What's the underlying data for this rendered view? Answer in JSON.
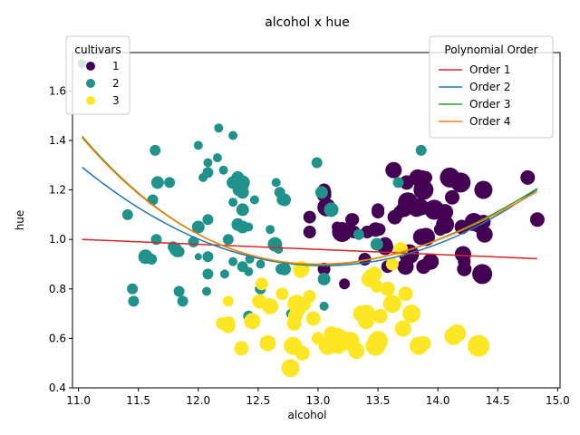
{
  "chart_data": {
    "type": "scatter",
    "title": "alcohol x hue",
    "xlabel": "alcohol",
    "ylabel": "hue",
    "xlim": [
      10.95,
      15.02
    ],
    "ylim": [
      0.4,
      1.755
    ],
    "xticks": [
      "11.0",
      "11.5",
      "12.0",
      "12.5",
      "13.0",
      "13.5",
      "14.0",
      "14.5",
      "15.0"
    ],
    "yticks": [
      "0.4",
      "0.6",
      "0.8",
      "1.0",
      "1.2",
      "1.4",
      "1.6"
    ],
    "grid": false,
    "legend_cultivars": {
      "title": "cultivars",
      "placement": "top-left",
      "entries": [
        {
          "label": "1",
          "color": "#440154"
        },
        {
          "label": "2",
          "color": "#21918c"
        },
        {
          "label": "3",
          "color": "#fde725"
        }
      ]
    },
    "legend_poly": {
      "title": "Polynomial Order",
      "placement": "top-right",
      "entries": [
        {
          "label": "Order 1",
          "color": "#d62728"
        },
        {
          "label": "Order 2",
          "color": "#1f77b4"
        },
        {
          "label": "Order 3",
          "color": "#2ca02c"
        },
        {
          "label": "Order 4",
          "color": "#ff7f0e"
        }
      ]
    },
    "series": [
      {
        "name": "1",
        "color": "#440154",
        "points": [
          [
            13.2,
            1.03,
            22
          ],
          [
            13.16,
            1.05,
            12
          ],
          [
            14.37,
            0.86,
            22
          ],
          [
            13.24,
            1.04,
            14
          ],
          [
            14.2,
            1.05,
            16
          ],
          [
            14.39,
            1.02,
            18
          ],
          [
            14.06,
            1.06,
            20
          ],
          [
            14.83,
            1.08,
            16
          ],
          [
            13.86,
            1.01,
            18
          ],
          [
            14.1,
            1.25,
            22
          ],
          [
            14.12,
            1.17,
            16
          ],
          [
            13.75,
            1.15,
            22
          ],
          [
            14.75,
            1.25,
            16
          ],
          [
            14.38,
            1.2,
            20
          ],
          [
            13.63,
            1.28,
            18
          ],
          [
            14.3,
            1.07,
            20
          ],
          [
            13.83,
            1.13,
            20
          ],
          [
            14.19,
            1.23,
            22
          ],
          [
            13.64,
            1.09,
            16
          ],
          [
            14.06,
            1.11,
            18
          ],
          [
            12.93,
            1.09,
            14
          ],
          [
            13.71,
            1.12,
            16
          ],
          [
            13.5,
            1.12,
            14
          ],
          [
            13.05,
            1.18,
            16
          ],
          [
            13.39,
            0.92,
            14
          ],
          [
            13.3,
            1.03,
            14
          ],
          [
            13.87,
            1.25,
            16
          ],
          [
            14.02,
            1.04,
            14
          ],
          [
            13.73,
            0.89,
            18
          ],
          [
            13.58,
            0.89,
            14
          ],
          [
            13.68,
            1.11,
            14
          ],
          [
            13.76,
            0.94,
            22
          ],
          [
            13.51,
            1.04,
            14
          ],
          [
            13.48,
            1.04,
            16
          ],
          [
            13.28,
            1.08,
            14
          ],
          [
            13.05,
            0.88,
            14
          ],
          [
            13.07,
            1.13,
            20
          ],
          [
            14.22,
            0.88,
            16
          ],
          [
            13.56,
            0.97,
            18
          ],
          [
            13.41,
            1.03,
            14
          ],
          [
            13.88,
            1.2,
            22
          ],
          [
            13.24,
            1.04,
            14
          ],
          [
            13.05,
            1.19,
            16
          ],
          [
            14.21,
            0.94,
            18
          ],
          [
            14.38,
            1.07,
            16
          ],
          [
            13.9,
            1.01,
            20
          ],
          [
            13.94,
            0.91,
            18
          ],
          [
            13.05,
            1.2,
            14
          ],
          [
            13.83,
            1.25,
            18
          ],
          [
            13.82,
            1.12,
            16
          ],
          [
            13.77,
            1.13,
            16
          ],
          [
            13.74,
            1.23,
            16
          ],
          [
            13.56,
            0.98,
            16
          ],
          [
            14.22,
            0.91,
            14
          ],
          [
            13.29,
            1.08,
            14
          ],
          [
            13.72,
            1.12,
            16
          ],
          [
            13.5,
            1.11,
            14
          ],
          [
            13.86,
            1.13,
            18
          ],
          [
            13.22,
            0.82,
            12
          ],
          [
            13.88,
            0.89,
            16
          ],
          [
            14.34,
            1.06,
            18
          ],
          [
            13.97,
            1.12,
            22
          ],
          [
            13.9,
            1.25,
            14
          ],
          [
            12.93,
            1.03,
            14
          ]
        ]
      },
      {
        "name": "2",
        "color": "#21918c",
        "points": [
          [
            12.37,
            1.05,
            14
          ],
          [
            12.33,
            1.25,
            14
          ],
          [
            12.64,
            0.98,
            16
          ],
          [
            13.67,
            1.23,
            12
          ],
          [
            12.37,
            1.22,
            14
          ],
          [
            12.17,
            1.45,
            10
          ],
          [
            12.37,
            1.19,
            14
          ],
          [
            13.11,
            1.12,
            16
          ],
          [
            12.37,
            1.12,
            14
          ],
          [
            13.34,
            1.02,
            12
          ],
          [
            12.21,
            1.28,
            10
          ],
          [
            12.29,
            1.42,
            10
          ],
          [
            13.86,
            1.36,
            12
          ],
          [
            13.49,
            0.98,
            14
          ],
          [
            12.99,
            1.31,
            12
          ],
          [
            11.96,
            0.99,
            12
          ],
          [
            11.66,
            1.23,
            14
          ],
          [
            13.03,
            1.19,
            14
          ],
          [
            11.84,
            0.95,
            12
          ],
          [
            12.33,
            1.06,
            14
          ],
          [
            12.7,
            1.16,
            12
          ],
          [
            12.0,
            1.38,
            10
          ],
          [
            12.72,
            1.16,
            14
          ],
          [
            12.08,
            1.31,
            10
          ],
          [
            13.05,
            0.84,
            14
          ],
          [
            11.84,
            0.79,
            12
          ],
          [
            12.67,
            0.96,
            10
          ],
          [
            12.16,
            1.33,
            10
          ],
          [
            11.65,
            1.0,
            12
          ],
          [
            11.64,
            1.36,
            12
          ],
          [
            12.08,
            1.27,
            12
          ],
          [
            12.08,
            1.08,
            12
          ],
          [
            12.0,
            1.05,
            14
          ],
          [
            12.69,
            0.88,
            12
          ],
          [
            12.29,
            0.91,
            10
          ],
          [
            11.62,
            1.16,
            12
          ],
          [
            12.47,
            1.16,
            10
          ],
          [
            11.81,
            0.96,
            14
          ],
          [
            12.29,
            1.15,
            10
          ],
          [
            12.37,
            1.23,
            16
          ],
          [
            12.29,
            1.23,
            14
          ],
          [
            12.08,
            0.86,
            12
          ],
          [
            12.6,
            1.04,
            10
          ],
          [
            12.34,
            1.2,
            14
          ],
          [
            11.82,
            0.96,
            12
          ],
          [
            12.51,
            0.8,
            10
          ],
          [
            12.42,
            0.69,
            12
          ],
          [
            12.25,
            1.0,
            12
          ],
          [
            12.72,
            0.88,
            14
          ],
          [
            12.22,
            0.86,
            10
          ],
          [
            11.61,
            0.92,
            12
          ],
          [
            11.46,
            0.75,
            12
          ],
          [
            12.52,
            0.8,
            12
          ],
          [
            11.76,
            1.23,
            12
          ],
          [
            11.41,
            1.1,
            12
          ],
          [
            12.08,
            0.93,
            12
          ],
          [
            11.03,
            1.71,
            10
          ],
          [
            11.82,
            0.95,
            12
          ],
          [
            12.42,
            1.05,
            10
          ],
          [
            12.77,
            0.7,
            10
          ],
          [
            12.0,
            0.93,
            8
          ],
          [
            11.45,
            0.8,
            12
          ],
          [
            11.56,
            0.93,
            16
          ],
          [
            12.42,
            0.87,
            10
          ],
          [
            13.05,
            0.73,
            10
          ],
          [
            11.87,
            0.75,
            12
          ],
          [
            12.07,
            0.79,
            10
          ],
          [
            12.43,
            0.92,
            10
          ],
          [
            11.79,
            0.97,
            12
          ],
          [
            12.37,
            0.89,
            12
          ],
          [
            12.04,
            1.25,
            10
          ],
          [
            12.68,
            1.19,
            12
          ],
          [
            12.65,
            1.23,
            10
          ],
          [
            12.52,
            0.9,
            10
          ]
        ]
      },
      {
        "name": "3",
        "color": "#fde725",
        "points": [
          [
            12.86,
            0.88,
            18
          ],
          [
            12.88,
            0.74,
            16
          ],
          [
            12.81,
            0.69,
            16
          ],
          [
            12.7,
            0.78,
            14
          ],
          [
            12.51,
            0.75,
            16
          ],
          [
            12.6,
            0.73,
            18
          ],
          [
            12.25,
            0.75,
            12
          ],
          [
            12.53,
            0.82,
            14
          ],
          [
            13.49,
            0.81,
            14
          ],
          [
            12.84,
            0.72,
            16
          ],
          [
            12.93,
            0.77,
            14
          ],
          [
            13.36,
            0.7,
            18
          ],
          [
            13.52,
            0.69,
            16
          ],
          [
            13.62,
            0.74,
            20
          ],
          [
            12.25,
            0.66,
            16
          ],
          [
            13.16,
            0.61,
            18
          ],
          [
            13.88,
            0.58,
            16
          ],
          [
            12.87,
            0.54,
            16
          ],
          [
            13.32,
            0.55,
            18
          ],
          [
            13.08,
            0.57,
            20
          ],
          [
            13.5,
            0.59,
            22
          ],
          [
            12.79,
            0.57,
            20
          ],
          [
            13.11,
            0.62,
            16
          ],
          [
            13.23,
            0.59,
            20
          ],
          [
            12.58,
            0.58,
            18
          ],
          [
            13.17,
            0.57,
            18
          ],
          [
            13.84,
            0.57,
            20
          ],
          [
            12.45,
            0.67,
            18
          ],
          [
            14.34,
            0.57,
            24
          ],
          [
            13.48,
            0.57,
            22
          ],
          [
            12.36,
            0.56,
            16
          ],
          [
            13.69,
            0.96,
            16
          ],
          [
            12.85,
            0.87,
            14
          ],
          [
            12.96,
            0.68,
            16
          ],
          [
            13.78,
            0.7,
            20
          ],
          [
            13.73,
            0.78,
            16
          ],
          [
            13.45,
            0.85,
            18
          ],
          [
            12.82,
            0.74,
            20
          ],
          [
            13.58,
            0.8,
            16
          ],
          [
            13.4,
            0.67,
            18
          ],
          [
            12.2,
            0.66,
            14
          ],
          [
            12.77,
            0.48,
            20
          ],
          [
            14.16,
            0.62,
            20
          ],
          [
            13.71,
            0.64,
            18
          ],
          [
            13.4,
            0.7,
            20
          ],
          [
            13.27,
            0.59,
            20
          ],
          [
            13.17,
            0.6,
            22
          ],
          [
            14.13,
            0.61,
            20
          ],
          [
            12.8,
            0.66,
            16
          ],
          [
            13.47,
            0.86,
            16
          ],
          [
            13.62,
            0.9,
            14
          ],
          [
            12.25,
            0.65,
            16
          ],
          [
            13.0,
            0.6,
            14
          ],
          [
            13.3,
            0.56,
            14
          ],
          [
            13.43,
            0.84,
            18
          ]
        ]
      }
    ],
    "fits": [
      {
        "name": "Order 1",
        "color": "#d62728",
        "x_range": [
          11.03,
          14.83
        ],
        "coeffs": [
          1.8224,
          -0.06079
        ]
      },
      {
        "name": "Order 2",
        "color": "#1f77b4",
        "x_range": [
          11.03,
          14.83
        ],
        "coeffs": [
          10.9125,
          -1.4739,
          0.054965
        ]
      },
      {
        "name": "Order 3",
        "color": "#2ca02c",
        "x_range": [
          11.03,
          14.83
        ],
        "coeffs": [
          11.47,
          -1.6,
          0.064,
          -0.0002
        ]
      },
      {
        "name": "Order 4",
        "color": "#ff7f0e",
        "x_range": [
          11.03,
          14.83
        ],
        "coeffs": [
          11.3,
          -1.56,
          0.061,
          -0.0001,
          1e-07
        ]
      }
    ]
  }
}
